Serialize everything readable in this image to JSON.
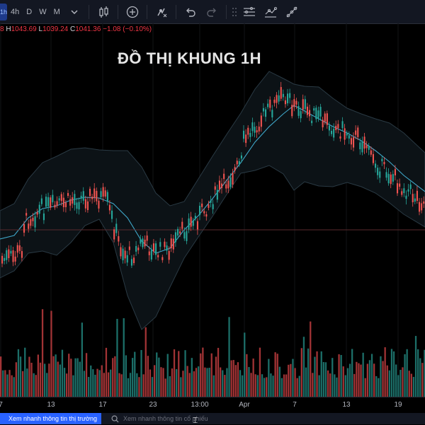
{
  "toolbar": {
    "active_timeframe": "1h",
    "timeframes": [
      "4h",
      "D",
      "W",
      "M"
    ],
    "icons": [
      "chevron-down-icon",
      "candles-icon",
      "add-indicator-icon",
      "alert-icon",
      "undo-icon",
      "redo-icon",
      "drag-handle-icon",
      "horizontal-lines-icon",
      "line-tools-icon",
      "trend-line-icon"
    ]
  },
  "ohlc": {
    "o_value": "8",
    "h_label": "H",
    "h_value": "1043.69",
    "l_label": "L",
    "l_value": "1039.24",
    "c_label": "C",
    "c_value": "1041.36",
    "change": "−1.08 (−0.10%)"
  },
  "chart": {
    "title": "ĐỒ THỊ KHUNG 1H",
    "up_color": "#26a69a",
    "down_color": "#f05350",
    "band_line_color": "#3fa7c9"
  },
  "xaxis": {
    "labels": [
      "7",
      "13",
      "17",
      "23",
      "13:00",
      "Apr",
      "7",
      "13",
      "19"
    ]
  },
  "bottom": {
    "tab_label": "Xem nhanh thông tin thị trường",
    "search_placeholder": "Xem nhanh thông tin cổ phiếu",
    "cursor_glyph": "⌶"
  }
}
